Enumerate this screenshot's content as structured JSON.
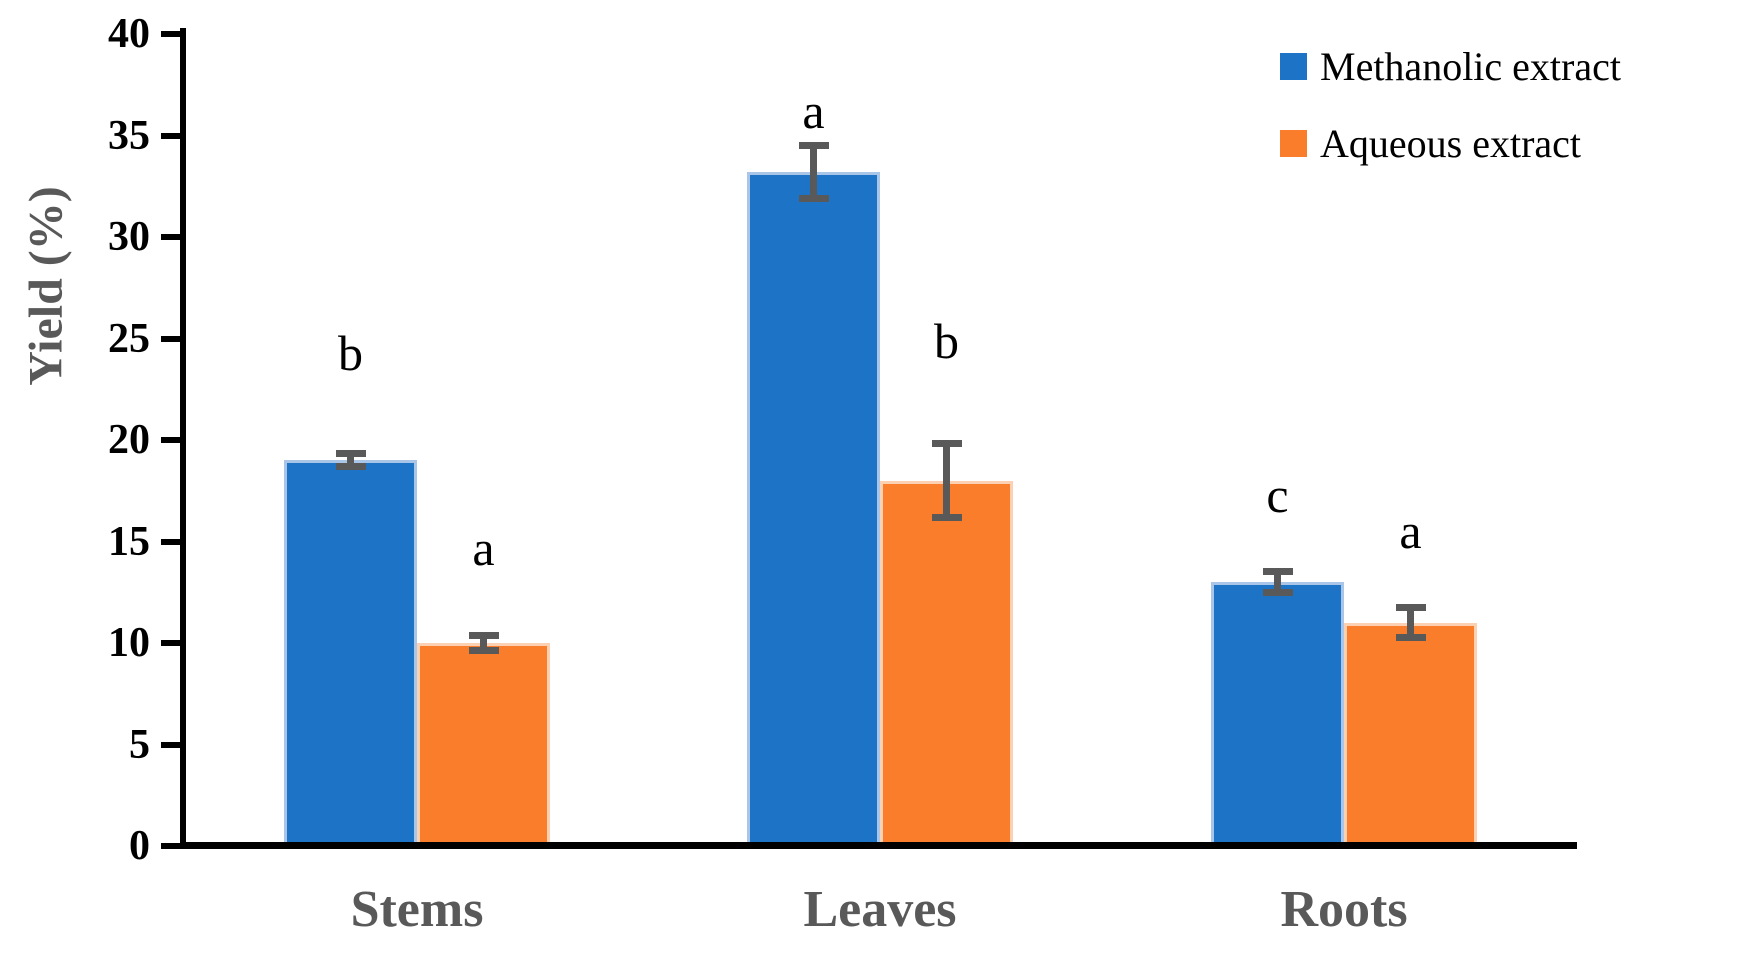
{
  "chart_data": {
    "type": "bar",
    "title": "",
    "ylabel": "Yield (%)",
    "xlabel": "",
    "categories": [
      "Stems",
      "Leaves",
      "Roots"
    ],
    "ylim": [
      0,
      40
    ],
    "yticks": [
      0,
      5,
      10,
      15,
      20,
      25,
      30,
      35,
      40
    ],
    "grid": false,
    "legend_position": "top-right",
    "bar_layout": "grouped-pairs-touching",
    "series": [
      {
        "name": "Methanolic extract",
        "color": "#1D73C6",
        "border_color": "#A9C6E8",
        "values": [
          19.0,
          33.2,
          13.0
        ],
        "errors": [
          0.5,
          1.5,
          0.7
        ],
        "significance_letters": [
          "b",
          "a",
          "c"
        ]
      },
      {
        "name": "Aqueous extract",
        "color": "#F97D2B",
        "border_color": "#FCD0B2",
        "values": [
          10.0,
          18.0,
          11.0
        ],
        "errors": [
          0.55,
          2.0,
          0.9
        ],
        "significance_letters": [
          "a",
          "b",
          "a"
        ]
      }
    ],
    "annotations": [
      {
        "category": "Stems",
        "series": "Methanolic extract",
        "text": "b",
        "y": 24.3
      },
      {
        "category": "Stems",
        "series": "Aqueous extract",
        "text": "a",
        "y": 14.7
      },
      {
        "category": "Leaves",
        "series": "Methanolic extract",
        "text": "a",
        "y": 36.2
      },
      {
        "category": "Leaves",
        "series": "Aqueous extract",
        "text": "b",
        "y": 24.9
      },
      {
        "category": "Roots",
        "series": "Methanolic extract",
        "text": "c",
        "y": 17.3
      },
      {
        "category": "Roots",
        "series": "Aqueous extract",
        "text": "a",
        "y": 15.5
      }
    ],
    "colors": {
      "error_bar": "#595959",
      "axis": "#000000",
      "tick_labels": "#000000",
      "category_labels": "#595959",
      "ylabel": "#595959",
      "annotation_text": "#000000",
      "background": "#FFFFFF"
    }
  }
}
